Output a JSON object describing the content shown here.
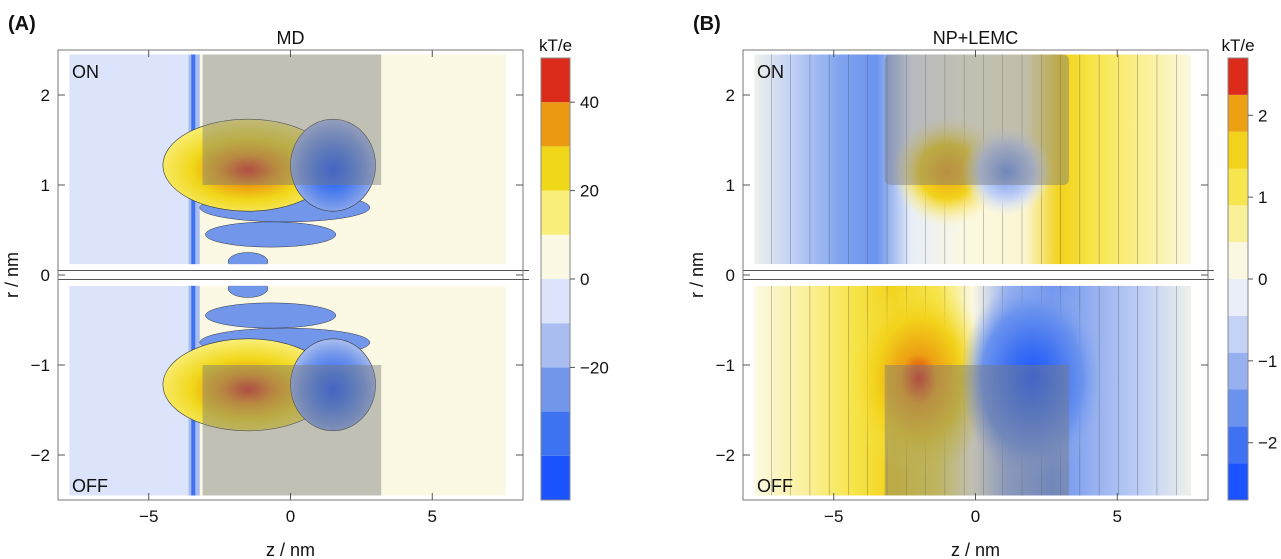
{
  "charts": [
    {
      "panel_label": "(A)",
      "title": "MD",
      "xlabel": "z / nm",
      "ylabel": "r / nm",
      "xlim": [
        -8.2,
        8.2
      ],
      "ylim": [
        -2.5,
        2.5
      ],
      "xticks": [
        -5,
        0,
        5
      ],
      "yticks": [
        -2,
        -1,
        0,
        1,
        2
      ],
      "corner_labels": [
        "ON",
        "OFF"
      ],
      "colorbar": {
        "unit": "kT/e",
        "min": -50,
        "max": 50,
        "ticks": [
          -20,
          0,
          20,
          40
        ],
        "bands": [
          {
            "from": -50,
            "to": -40,
            "color": "#1a53ff"
          },
          {
            "from": -40,
            "to": -30,
            "color": "#3d73f0"
          },
          {
            "from": -30,
            "to": -20,
            "color": "#7296ea"
          },
          {
            "from": -20,
            "to": -10,
            "color": "#a9bdf0"
          },
          {
            "from": -10,
            "to": 0,
            "color": "#dbe4fa"
          },
          {
            "from": 0,
            "to": 10,
            "color": "#fbf9e3"
          },
          {
            "from": 10,
            "to": 20,
            "color": "#faef7a"
          },
          {
            "from": 20,
            "to": 30,
            "color": "#f0d71a"
          },
          {
            "from": 30,
            "to": 40,
            "color": "#ec9a12"
          },
          {
            "from": 40,
            "to": 50,
            "color": "#dc2b1a"
          }
        ]
      }
    },
    {
      "panel_label": "(B)",
      "title": "NP+LEMC",
      "xlabel": "z / nm",
      "ylabel": "r / nm",
      "xlim": [
        -8.2,
        8.2
      ],
      "ylim": [
        -2.5,
        2.5
      ],
      "xticks": [
        -5,
        0,
        5
      ],
      "yticks": [
        -2,
        -1,
        0,
        1,
        2
      ],
      "corner_labels": [
        "ON",
        "OFF"
      ],
      "colorbar": {
        "unit": "kT/e",
        "min": -2.7,
        "max": 2.7,
        "ticks": [
          -2,
          -1,
          0,
          1,
          2
        ],
        "bands": [
          {
            "from": -2.7,
            "to": -2.25,
            "color": "#1a53ff"
          },
          {
            "from": -2.25,
            "to": -1.8,
            "color": "#3f72f2"
          },
          {
            "from": -1.8,
            "to": -1.35,
            "color": "#6b93ee"
          },
          {
            "from": -1.35,
            "to": -0.9,
            "color": "#97b1f0"
          },
          {
            "from": -0.9,
            "to": -0.45,
            "color": "#c4d2f5"
          },
          {
            "from": -0.45,
            "to": 0,
            "color": "#e9eef8"
          },
          {
            "from": 0,
            "to": 0.45,
            "color": "#fbf8e2"
          },
          {
            "from": 0.45,
            "to": 0.9,
            "color": "#fbf09a"
          },
          {
            "from": 0.9,
            "to": 1.35,
            "color": "#f7e64d"
          },
          {
            "from": 1.35,
            "to": 1.8,
            "color": "#f2d21a"
          },
          {
            "from": 1.8,
            "to": 2.25,
            "color": "#eda013"
          },
          {
            "from": 2.25,
            "to": 2.7,
            "color": "#dc2b1a"
          }
        ]
      }
    }
  ]
}
